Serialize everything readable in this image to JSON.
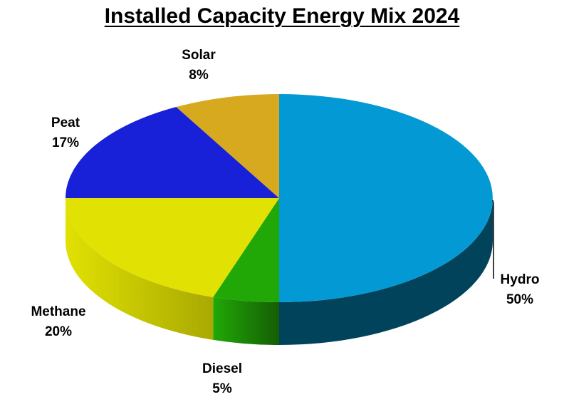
{
  "chart_data": {
    "type": "pie",
    "title": "Installed Capacity Energy Mix 2024",
    "three_d": true,
    "slices": [
      {
        "name": "Hydro",
        "value": 50,
        "label": "50%",
        "color": "#0399D4",
        "side_color": "#02435C"
      },
      {
        "name": "Diesel",
        "value": 5,
        "label": "5%",
        "color": "#21A807",
        "side_color": "#145E04"
      },
      {
        "name": "Methane",
        "value": 20,
        "label": "20%",
        "color": "#E1E103",
        "side_color": "#A9A902"
      },
      {
        "name": "Peat",
        "value": 17,
        "label": "17%",
        "color": "#1820D8",
        "side_color": "#0D1277"
      },
      {
        "name": "Solar",
        "value": 8,
        "label": "8%",
        "color": "#D7A91F",
        "side_color": "#8A6C13"
      }
    ]
  }
}
